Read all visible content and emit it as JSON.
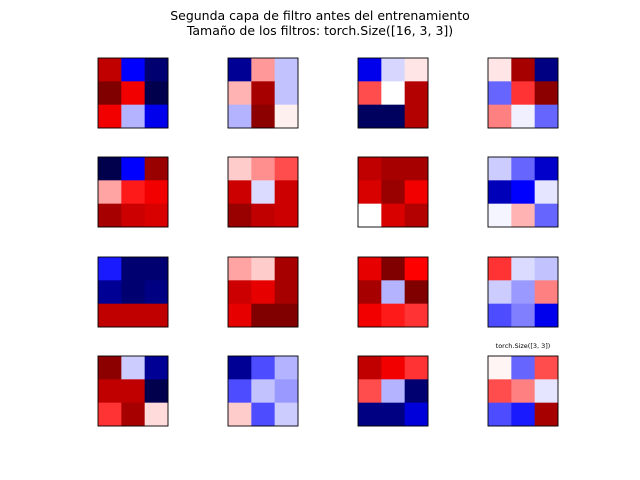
{
  "title": {
    "line1": "Segunda capa de filtro antes del entrenamiento",
    "line2": "Tamaño de los filtros: torch.Size([16, 3, 3])"
  },
  "chart_data": {
    "type": "heatmap",
    "colormap": "seismic",
    "value_range": [
      -1,
      1
    ],
    "grid": false,
    "rows": 4,
    "cols": 4,
    "panel_annotation": {
      "panel_index": 15,
      "text": "torch.Size([3, 3])"
    },
    "filters": [
      [
        [
          0.75,
          -0.5,
          -0.9
        ],
        [
          1.0,
          0.55,
          -1.0
        ],
        [
          0.55,
          -0.15,
          -0.55
        ]
      ],
      [
        [
          -0.8,
          0.2,
          -0.12
        ],
        [
          0.15,
          0.85,
          -0.12
        ],
        [
          -0.15,
          0.95,
          0.03
        ]
      ],
      [
        [
          -0.55,
          -0.08,
          0.05
        ],
        [
          0.35,
          0.0,
          0.8
        ],
        [
          -0.95,
          -0.95,
          0.8
        ]
      ],
      [
        [
          0.05,
          0.85,
          -0.85
        ],
        [
          -0.3,
          0.4,
          0.95
        ],
        [
          0.25,
          -0.03,
          -0.3
        ]
      ],
      [
        [
          -1.0,
          -0.5,
          0.9
        ],
        [
          0.18,
          0.45,
          0.55
        ],
        [
          0.85,
          0.7,
          0.65
        ]
      ],
      [
        [
          0.1,
          0.22,
          0.35
        ],
        [
          0.7,
          -0.07,
          0.7
        ],
        [
          0.9,
          0.75,
          0.7
        ]
      ],
      [
        [
          0.75,
          0.85,
          0.85
        ],
        [
          0.65,
          0.9,
          0.55
        ],
        [
          0.0,
          0.65,
          0.8
        ]
      ],
      [
        [
          -0.1,
          -0.3,
          -0.65
        ],
        [
          -0.7,
          -0.5,
          -0.05
        ],
        [
          -0.02,
          0.15,
          -0.3
        ]
      ],
      [
        [
          -0.45,
          -0.9,
          -0.9
        ],
        [
          -0.8,
          -0.9,
          -0.85
        ],
        [
          0.75,
          0.75,
          0.75
        ]
      ],
      [
        [
          0.18,
          0.1,
          0.85
        ],
        [
          0.7,
          0.6,
          0.85
        ],
        [
          0.6,
          1.0,
          1.0
        ]
      ],
      [
        [
          0.6,
          1.0,
          0.5
        ],
        [
          0.85,
          -0.15,
          1.0
        ],
        [
          0.55,
          0.45,
          0.4
        ]
      ],
      [
        [
          0.4,
          -0.07,
          -0.12
        ],
        [
          -0.1,
          -0.2,
          0.25
        ],
        [
          -0.35,
          -0.25,
          -0.55
        ]
      ],
      [
        [
          0.95,
          -0.1,
          -0.8
        ],
        [
          0.75,
          0.75,
          -1.0
        ],
        [
          0.4,
          0.85,
          0.07
        ]
      ],
      [
        [
          -0.8,
          -0.35,
          -0.15
        ],
        [
          -0.35,
          -0.12,
          -0.2
        ],
        [
          0.1,
          -0.35,
          -0.1
        ]
      ],
      [
        [
          0.75,
          0.55,
          0.4
        ],
        [
          0.35,
          -0.15,
          -0.9
        ],
        [
          -0.85,
          -0.85,
          -0.6
        ]
      ],
      [
        [
          0.02,
          -0.3,
          0.35
        ],
        [
          0.35,
          0.25,
          -0.05
        ],
        [
          -0.35,
          -0.45,
          0.85
        ]
      ]
    ]
  }
}
